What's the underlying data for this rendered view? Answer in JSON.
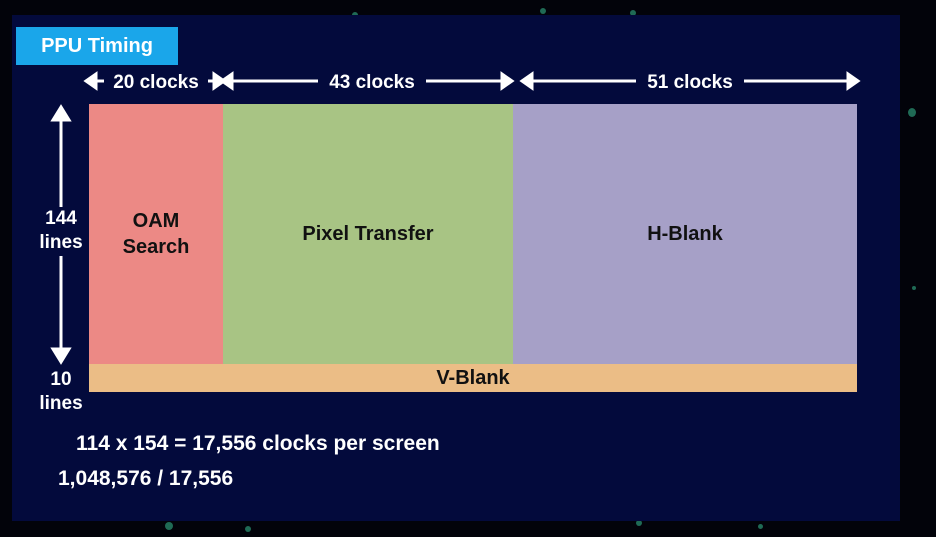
{
  "title": "PPU Timing",
  "clocks": {
    "oam": "20 clocks",
    "pixel": "43 clocks",
    "hblank": "51 clocks"
  },
  "blocks": {
    "oam_search": "OAM Search",
    "pixel_transfer": "Pixel Transfer",
    "h_blank": "H-Blank",
    "v_blank": "V-Blank"
  },
  "lines": {
    "visible": "144 lines",
    "vblank": "10 lines"
  },
  "formulas": {
    "line1": "114 x 154 = 17,556 clocks per screen",
    "line2": "1,048,576 / 17,556"
  },
  "colors": {
    "slide_bg": "#030a3c",
    "title_bg": "#1aa6ea",
    "oam": "#ec8985",
    "pixel": "#a8c484",
    "hblank": "#a6a0c7",
    "vblank": "#ebbd86"
  }
}
